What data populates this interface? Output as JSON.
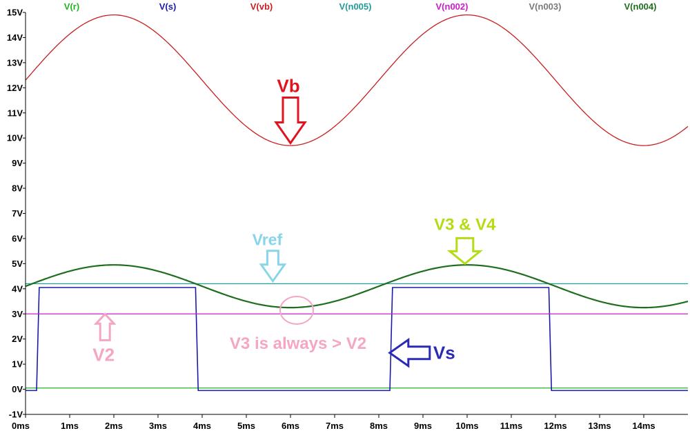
{
  "chart_data": {
    "type": "line",
    "title": "",
    "xlabel": "",
    "ylabel": "",
    "xlim": [
      0,
      15
    ],
    "ylim": [
      -1,
      15
    ],
    "x_unit": "ms",
    "y_unit": "V",
    "x_ticks": [
      "0ms",
      "1ms",
      "2ms",
      "3ms",
      "4ms",
      "5ms",
      "6ms",
      "7ms",
      "8ms",
      "9ms",
      "10ms",
      "11ms",
      "12ms",
      "13ms",
      "14ms"
    ],
    "y_ticks": [
      "-1V",
      "0V",
      "1V",
      "2V",
      "3V",
      "4V",
      "5V",
      "6V",
      "7V",
      "8V",
      "9V",
      "10V",
      "11V",
      "12V",
      "13V",
      "14V",
      "15V"
    ],
    "legend": [
      {
        "name": "V(r)",
        "color": "#22b422"
      },
      {
        "name": "V(s)",
        "color": "#1a1aa8"
      },
      {
        "name": "V(vb)",
        "color": "#c81e1e"
      },
      {
        "name": "V(n005)",
        "color": "#219a9a"
      },
      {
        "name": "V(n002)",
        "color": "#c81ec8"
      },
      {
        "name": "V(n003)",
        "color": "#7a7a7a"
      },
      {
        "name": "V(n004)",
        "color": "#1e6e1e"
      }
    ],
    "series": [
      {
        "name": "V(r)",
        "kind": "constant",
        "value": 0.05,
        "color": "#22b422"
      },
      {
        "name": "V(s)",
        "kind": "square",
        "high": 4.05,
        "low": -0.05,
        "high_intervals": [
          [
            0.25,
            3.85
          ],
          [
            8.25,
            11.85
          ]
        ],
        "color": "#1a1aa8"
      },
      {
        "name": "V(vb)",
        "kind": "sine",
        "offset": 12.3,
        "amplitude": 2.6,
        "period_ms": 8,
        "peak_at_ms": 2,
        "x": [
          0,
          2,
          4,
          6,
          8,
          10,
          12,
          14,
          15
        ],
        "y": [
          12.3,
          14.9,
          12.3,
          9.7,
          12.3,
          14.9,
          12.3,
          9.7,
          10.45
        ],
        "color": "#c81e1e"
      },
      {
        "name": "V(n005)",
        "kind": "constant",
        "value": 4.2,
        "color": "#219a9a"
      },
      {
        "name": "V(n002)",
        "kind": "constant",
        "value": 3.0,
        "color": "#c81ec8"
      },
      {
        "name": "V(n003)",
        "kind": "sine",
        "offset": 4.1,
        "amplitude": 0.85,
        "period_ms": 8,
        "peak_at_ms": 2,
        "color": "#7a7a7a"
      },
      {
        "name": "V(n004)",
        "kind": "sine",
        "offset": 4.1,
        "amplitude": 0.85,
        "period_ms": 8,
        "peak_at_ms": 2,
        "x": [
          0,
          2,
          4,
          6,
          8,
          10,
          12,
          14,
          15
        ],
        "y": [
          4.1,
          4.95,
          4.1,
          3.25,
          4.1,
          4.95,
          4.1,
          3.25,
          3.45
        ],
        "color": "#1e6e1e"
      }
    ],
    "annotations": [
      {
        "text": "Vb",
        "color": "#e0141e",
        "arrow": "down",
        "target": [
          6.0,
          9.8
        ]
      },
      {
        "text": "Vref",
        "color": "#88d4e8",
        "arrow": "down",
        "target": [
          5.6,
          4.25
        ]
      },
      {
        "text": "V3 & V4",
        "color": "#b4dc14",
        "arrow": "down",
        "target": [
          9.95,
          5.0
        ]
      },
      {
        "text": "V2",
        "color": "#f4a6c4",
        "arrow": "up",
        "target": [
          1.8,
          3.05
        ]
      },
      {
        "text": "V3 is always > V2",
        "color": "#f4a6c4",
        "arrow": "none",
        "target": [
          6.0,
          3.2
        ]
      },
      {
        "text": "Vs",
        "color": "#2a2ab4",
        "arrow": "left",
        "target": [
          8.2,
          1.45
        ]
      }
    ]
  }
}
